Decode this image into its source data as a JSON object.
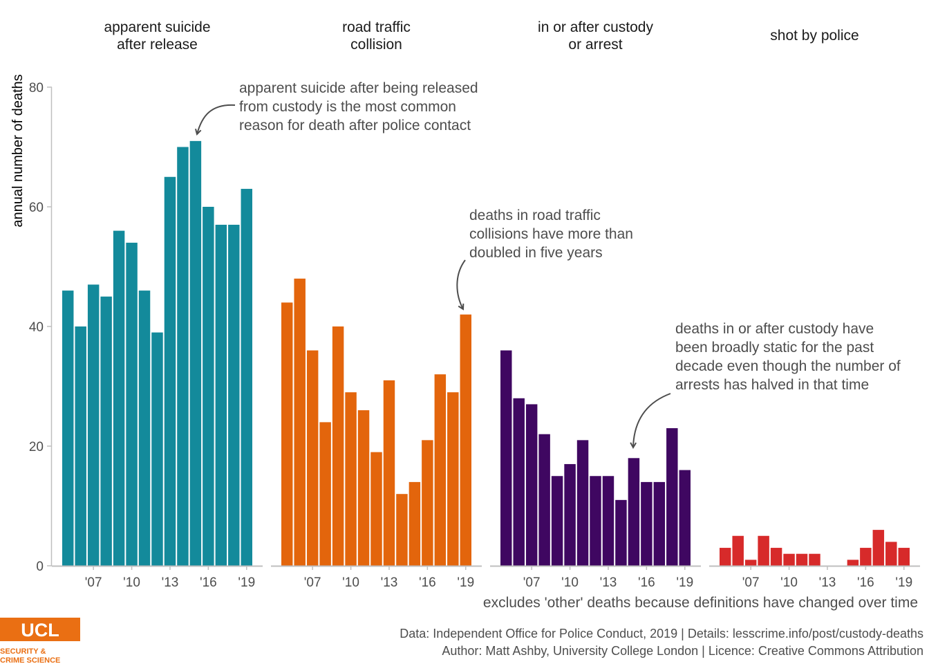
{
  "chart_data": {
    "type": "bar",
    "ylabel": "annual number of deaths",
    "ylim": [
      0,
      80
    ],
    "yticks": [
      "0",
      "20",
      "40",
      "60",
      "80"
    ],
    "x": [
      2005,
      2006,
      2007,
      2008,
      2009,
      2010,
      2011,
      2012,
      2013,
      2014,
      2015,
      2016,
      2017,
      2018,
      2019
    ],
    "xtick_labels": [
      "'07",
      "'10",
      "'13",
      "'16",
      "'19"
    ],
    "xtick_years": [
      2007,
      2010,
      2013,
      2016,
      2019
    ],
    "series": [
      {
        "name": "apparent suicide after release",
        "title_lines": [
          "apparent suicide",
          "after release"
        ],
        "color": "#138a9b",
        "values": [
          46,
          40,
          47,
          45,
          56,
          54,
          46,
          39,
          65,
          70,
          71,
          60,
          57,
          57,
          63
        ]
      },
      {
        "name": "road traffic collision",
        "title_lines": [
          "road traffic",
          "collision"
        ],
        "color": "#e3650c",
        "values": [
          44,
          48,
          36,
          24,
          40,
          29,
          26,
          19,
          31,
          12,
          14,
          21,
          32,
          29,
          42
        ]
      },
      {
        "name": "in or after custody or arrest",
        "title_lines": [
          "in or after custody",
          "or arrest"
        ],
        "color": "#3f0761",
        "values": [
          36,
          28,
          27,
          22,
          15,
          17,
          21,
          15,
          15,
          11,
          18,
          14,
          14,
          23,
          16
        ]
      },
      {
        "name": "shot by police",
        "title_lines": [
          "shot by police"
        ],
        "color": "#d72a2a",
        "values": [
          3,
          5,
          1,
          5,
          3,
          2,
          2,
          2,
          0,
          0,
          1,
          3,
          6,
          4,
          3
        ]
      }
    ],
    "annotations": [
      {
        "facet": 0,
        "lines": [
          "apparent suicide after being released",
          "from custody is the most common",
          "reason for death after police contact"
        ]
      },
      {
        "facet": 1,
        "lines": [
          "deaths in road traffic",
          "collisions have more than",
          "doubled in five years"
        ]
      },
      {
        "facet": 2,
        "lines": [
          "deaths in or after custody have",
          "been broadly static for the past",
          "decade even though the number of",
          "arrests has halved in that time"
        ]
      }
    ],
    "caption": "excludes 'other' deaths because definitions have changed over time",
    "grid": false
  },
  "footer": {
    "line1": "Data: Independent Office for Police Conduct, 2019 |  Details: lesscrime.info/post/custody-deaths",
    "line2": "Author: Matt Ashby, University College London |  Licence: Creative Commons Attribution"
  },
  "logo": {
    "mark": "UCL",
    "line1": "SECURITY &",
    "line2": "CRIME SCIENCE",
    "color": "#ea6f13"
  }
}
